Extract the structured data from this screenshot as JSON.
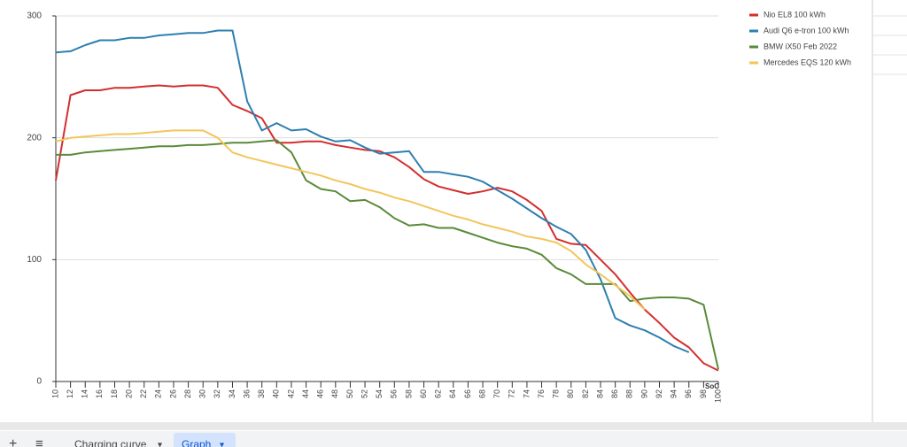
{
  "chart_data": {
    "type": "line",
    "x_label": "SoC",
    "x": [
      10,
      12,
      14,
      16,
      18,
      20,
      22,
      24,
      26,
      28,
      30,
      32,
      34,
      36,
      38,
      40,
      42,
      44,
      46,
      48,
      50,
      52,
      54,
      56,
      58,
      60,
      62,
      64,
      66,
      68,
      70,
      72,
      74,
      76,
      78,
      80,
      82,
      84,
      86,
      88,
      90,
      92,
      94,
      96,
      98,
      100
    ],
    "xlim": [
      10,
      100
    ],
    "xticks": [
      10,
      12,
      14,
      16,
      18,
      20,
      22,
      24,
      26,
      28,
      30,
      32,
      34,
      36,
      38,
      40,
      42,
      44,
      46,
      48,
      50,
      52,
      54,
      56,
      58,
      60,
      62,
      64,
      66,
      68,
      70,
      72,
      74,
      76,
      78,
      80,
      82,
      84,
      86,
      88,
      90,
      92,
      94,
      96,
      98,
      100
    ],
    "ylim": [
      0,
      300
    ],
    "yticks": [
      0,
      100,
      200,
      300
    ],
    "grid": true,
    "legend": "right",
    "series": [
      {
        "name": "Nio EL8 100 kWh",
        "color": "#d32f2f",
        "values": [
          165,
          235,
          239,
          239,
          241,
          241,
          242,
          243,
          242,
          243,
          243,
          241,
          227,
          222,
          216,
          196,
          196,
          197,
          197,
          194,
          192,
          190,
          189,
          184,
          176,
          166,
          160,
          157,
          154,
          156,
          159,
          156,
          149,
          140,
          117,
          113,
          112,
          100,
          88,
          73,
          59,
          48,
          36,
          28,
          15,
          9
        ]
      },
      {
        "name": "Audi Q6 e-tron 100 kWh",
        "color": "#2e7fb0",
        "values": [
          270,
          271,
          276,
          280,
          280,
          282,
          282,
          284,
          285,
          286,
          286,
          288,
          288,
          230,
          206,
          212,
          206,
          207,
          201,
          197,
          198,
          192,
          187,
          188,
          189,
          172,
          172,
          170,
          168,
          164,
          157,
          150,
          142,
          134,
          127,
          121,
          108,
          84,
          52,
          46,
          42,
          36,
          29,
          24,
          null,
          null
        ]
      },
      {
        "name": "BMW iX50 Feb 2022",
        "color": "#5a8a3a",
        "values": [
          186,
          186,
          188,
          189,
          190,
          191,
          192,
          193,
          193,
          194,
          194,
          195,
          196,
          196,
          197,
          198,
          188,
          165,
          158,
          156,
          148,
          149,
          143,
          134,
          128,
          129,
          126,
          126,
          122,
          118,
          114,
          111,
          109,
          104,
          93,
          88,
          80,
          80,
          80,
          66,
          68,
          69,
          69,
          68,
          63,
          10
        ]
      },
      {
        "name": "Mercedes EQS 120 kWh",
        "color": "#f2c65c",
        "values": [
          197,
          200,
          201,
          202,
          203,
          203,
          204,
          205,
          206,
          206,
          206,
          200,
          188,
          184,
          181,
          178,
          175,
          172,
          169,
          165,
          162,
          158,
          155,
          151,
          148,
          144,
          140,
          136,
          133,
          129,
          126,
          123,
          119,
          117,
          114,
          107,
          96,
          88,
          79,
          70,
          59,
          null,
          null,
          null,
          null,
          null
        ]
      }
    ]
  },
  "ui": {
    "tabs": [
      "+",
      "≡",
      "Charging curve",
      "Graph"
    ],
    "tab_menu_icon": "▾"
  }
}
